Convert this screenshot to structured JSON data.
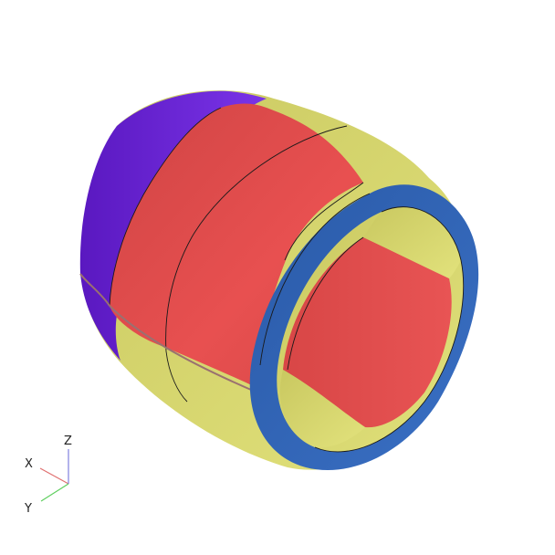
{
  "axes": {
    "x_label": "X",
    "y_label": "Y",
    "z_label": "Z",
    "x_color": "#e07070",
    "y_color": "#5fcf5f",
    "z_color": "#8080e0"
  },
  "model": {
    "colors": {
      "purple_band": "#6a24d8",
      "yellow_band": "#d8d870",
      "red_band": "#e04c4c",
      "blue_ring": "#2e62b0",
      "edge_lines": "#1a1a1a"
    }
  }
}
